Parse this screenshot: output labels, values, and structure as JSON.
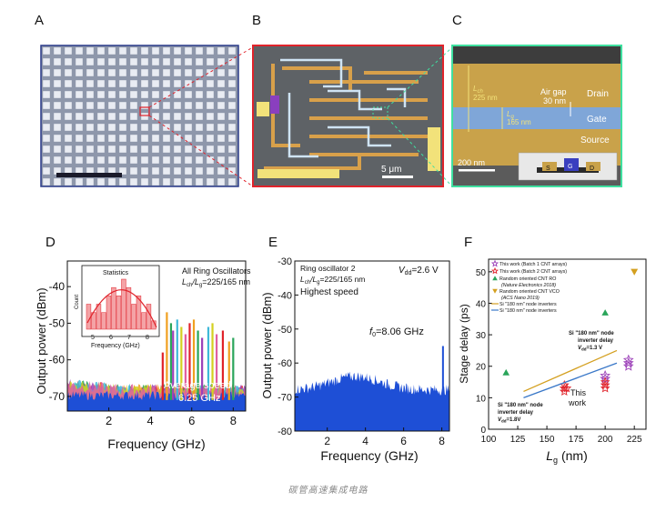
{
  "panels": {
    "A": {
      "label": "A"
    },
    "B": {
      "label": "B",
      "scalebar": "5 μm"
    },
    "C": {
      "label": "C",
      "scalebar": "200 nm",
      "lch": "L",
      "lch_sub": "ch",
      "lch_val": "225 nm",
      "lg": "L",
      "lg_sub": "g",
      "lg_val": "165 nm",
      "airgap": "Air gap",
      "airgap_val": "30 nm",
      "drain": "Drain",
      "gate": "Gate",
      "source": "Source",
      "inset_s": "S",
      "inset_g": "G",
      "inset_d": "D"
    },
    "D": {
      "label": "D",
      "ylabel": "Output power (dBm)",
      "xlabel": "Frequency (GHz)",
      "title1": "All Ring Oscillators",
      "title2_a": "L",
      "title2_sub1": "ch",
      "title2_b": "/L",
      "title2_sub2": "g",
      "title2_c": "=225/165 nm",
      "avg1": "Average speed",
      "avg2": "6.25 GHz",
      "inset_title": "Statistics",
      "inset_ylabel": "Count",
      "inset_xlabel": "Frequency (GHz)",
      "inset_xticks": [
        "5",
        "6",
        "7",
        "8"
      ]
    },
    "E": {
      "label": "E",
      "ylabel": "Output power (dBm)",
      "xlabel": "Frequency (GHz)",
      "t1": "Ring oscillator 2",
      "t2_a": "L",
      "t2_sub1": "ch",
      "t2_b": "/L",
      "t2_sub2": "g",
      "t2_c": "=225/165 nm",
      "t3": "Highest speed",
      "vdd_a": "V",
      "vdd_sub": "dd",
      "vdd_b": "=2.6 V",
      "f0_a": "f",
      "f0_sub": "0",
      "f0_b": "=8.06 GHz"
    },
    "F": {
      "label": "F",
      "ylabel": "Stage delay (ps)",
      "xlabel_a": "L",
      "xlabel_sub": "g",
      "xlabel_b": " (nm)",
      "legend": [
        "This work (Batch 1 CNT arrays)",
        "This work (Batch 2 CNT arrays)",
        "Random oriented CNT RO",
        "(Nature Electronics 2018)",
        "Random oriented CNT VCO",
        "(ACS Nano 2019)",
        "Si \"180 nm\" node inverters",
        "Si \"180 nm\" node inverters"
      ],
      "ann1_a": "Si \"180 nm\" node",
      "ann1_b": "inverter delay",
      "ann1_c": "V",
      "ann1_sub": "dd",
      "ann1_d": "=1.3 V",
      "ann2_a": "Si \"180 nm\" node",
      "ann2_b": "inverter delay",
      "ann2_c": "V",
      "ann2_sub": "dd",
      "ann2_d": "=1.8V",
      "thiswork1": "This",
      "thiswork2": "work"
    }
  },
  "caption": "碳管高速集成电路",
  "colors": {
    "drain": "#c9a24a",
    "gate": "#7fa6d8",
    "source": "#c9a24a",
    "spectrum": "#1e4fd6",
    "border_b": "#e0232b",
    "border_c": "#3fe0a0",
    "border_a": "#2a3a8a"
  },
  "chart_data": [
    {
      "type": "area",
      "panel": "D",
      "x_ticks": [
        2,
        4,
        6,
        8
      ],
      "y_ticks": [
        -70,
        -60,
        -50,
        -40
      ],
      "xlim": [
        0,
        8.6
      ],
      "ylim": [
        -74,
        -33
      ],
      "xlabel": "Frequency (GHz)",
      "ylabel": "Output power (dBm)",
      "peaks_ghz": [
        4.6,
        4.8,
        5.0,
        5.1,
        5.3,
        5.5,
        5.7,
        5.9,
        6.1,
        6.3,
        6.5,
        6.8,
        7.0,
        7.2,
        7.5,
        7.8,
        8.0
      ],
      "peaks_dbm": [
        -58,
        -47,
        -50,
        -52,
        -49,
        -51,
        -53,
        -50,
        -49,
        -52,
        -54,
        -51,
        -50,
        -53,
        -52,
        -55,
        -54
      ],
      "inset": {
        "type": "bar",
        "x": [
          4.5,
          4.75,
          5.0,
          5.25,
          5.5,
          5.75,
          6.0,
          6.25,
          6.5,
          6.75,
          7.0,
          7.25,
          7.5,
          7.75
        ],
        "counts": [
          3,
          2,
          3,
          2,
          4,
          5,
          4,
          6,
          5,
          3,
          4,
          2,
          3,
          1
        ]
      }
    },
    {
      "type": "area",
      "panel": "E",
      "x_ticks": [
        2,
        4,
        6,
        8
      ],
      "y_ticks": [
        -80,
        -70,
        -60,
        -50,
        -40,
        -30
      ],
      "xlim": [
        0.3,
        8.4
      ],
      "ylim": [
        -80,
        -30
      ],
      "xlabel": "Frequency (GHz)",
      "ylabel": "Output power (dBm)",
      "peak": {
        "x": 8.06,
        "y": -55
      }
    },
    {
      "type": "scatter",
      "panel": "F",
      "x_ticks": [
        100,
        125,
        150,
        175,
        200,
        225
      ],
      "y_ticks": [
        0,
        10,
        20,
        30,
        40,
        50
      ],
      "xlim": [
        100,
        235
      ],
      "ylim": [
        0,
        54
      ],
      "xlabel": "Lg (nm)",
      "ylabel": "Stage delay (ps)",
      "series": [
        {
          "name": "This work (Batch 1 CNT arrays)",
          "marker": "star-open",
          "color": "#9b3fb8",
          "points": [
            [
              200,
              17
            ],
            [
              200,
              16
            ],
            [
              220,
              21
            ],
            [
              220,
              22
            ],
            [
              220,
              20
            ]
          ]
        },
        {
          "name": "This work (Batch 2 CNT arrays)",
          "marker": "star",
          "color": "#e0232b",
          "points": [
            [
              165,
              14
            ],
            [
              165,
              13
            ],
            [
              165,
              12
            ],
            [
              167,
              13
            ],
            [
              200,
              15
            ],
            [
              200,
              14
            ],
            [
              200,
              13
            ]
          ]
        },
        {
          "name": "Random oriented CNT RO",
          "marker": "triangle-up",
          "color": "#2aa55a",
          "points": [
            [
              115,
              18
            ],
            [
              200,
              37
            ]
          ]
        },
        {
          "name": "Random oriented CNT VCO",
          "marker": "triangle-down",
          "color": "#d4a020",
          "points": [
            [
              225,
              50
            ]
          ]
        },
        {
          "name": "Si \"180 nm\" node inverters",
          "type": "line",
          "color": "#d4a020",
          "points": [
            [
              130,
              12
            ],
            [
              210,
              25
            ]
          ]
        },
        {
          "name": "Si \"180 nm\" node inverters",
          "type": "line",
          "color": "#3a78c8",
          "points": [
            [
              130,
              10
            ],
            [
              210,
              21
            ]
          ]
        }
      ]
    }
  ]
}
